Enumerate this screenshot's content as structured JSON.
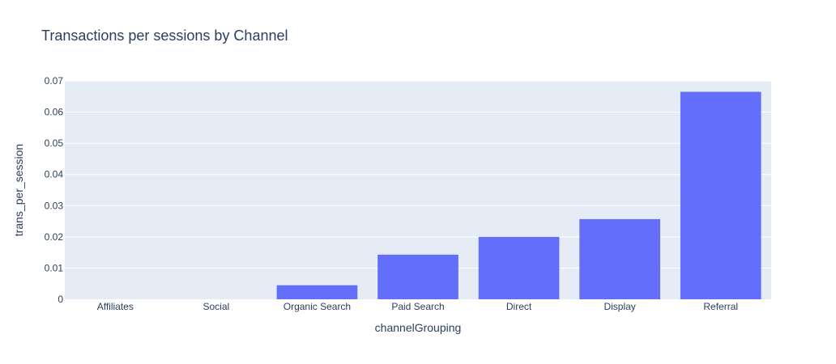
{
  "colors": {
    "plot_bg": "#e5ecf6",
    "grid": "#ffffff",
    "bar": "#636efa",
    "text": "#2a3f5f"
  },
  "chart_data": {
    "type": "bar",
    "title": "Transactions per sessions by Channel",
    "xlabel": "channelGrouping",
    "ylabel": "trans_per_session",
    "categories": [
      "Affiliates",
      "Social",
      "Organic Search",
      "Paid Search",
      "Direct",
      "Display",
      "Referral"
    ],
    "values": [
      0.0,
      0.0,
      0.0045,
      0.0143,
      0.02,
      0.0257,
      0.0665
    ],
    "ylim": [
      0,
      0.07
    ],
    "yticks": [
      0,
      0.01,
      0.02,
      0.03,
      0.04,
      0.05,
      0.06,
      0.07
    ],
    "ytick_labels": [
      "0",
      "0.01",
      "0.02",
      "0.03",
      "0.04",
      "0.05",
      "0.06",
      "0.07"
    ],
    "grid": true,
    "legend": false
  }
}
